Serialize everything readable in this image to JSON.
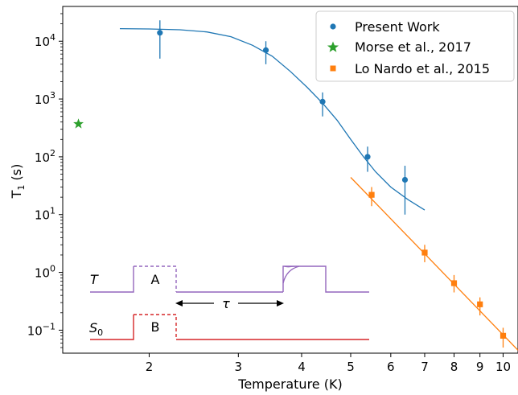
{
  "chart_data": {
    "type": "scatter",
    "xlabel": "Temperature (K)",
    "ylabel": "T",
    "ylabel_sub": "1",
    "ylabel_unit": " (s)",
    "x_scale": "log",
    "y_scale": "log",
    "xlim": [
      1.35,
      10.7
    ],
    "ylim": [
      0.04,
      40000
    ],
    "x_ticks": [
      {
        "value": 2,
        "label": "2"
      },
      {
        "value": 3,
        "label": "3"
      },
      {
        "value": 4,
        "label": "4"
      },
      {
        "value": 5,
        "label": "5"
      },
      {
        "value": 6,
        "label": "6"
      },
      {
        "value": 7,
        "label": "7"
      },
      {
        "value": 8,
        "label": "8"
      },
      {
        "value": 9,
        "label": "9"
      },
      {
        "value": 10,
        "label": "10"
      }
    ],
    "y_ticks": [
      {
        "value": 0.1,
        "base": "10",
        "exp": "−1"
      },
      {
        "value": 1,
        "base": "10",
        "exp": "0"
      },
      {
        "value": 10,
        "base": "10",
        "exp": "1"
      },
      {
        "value": 100,
        "base": "10",
        "exp": "2"
      },
      {
        "value": 1000,
        "base": "10",
        "exp": "3"
      },
      {
        "value": 10000,
        "base": "10",
        "exp": "4"
      }
    ],
    "legend_position": "top-right",
    "series": [
      {
        "name": "Present Work",
        "color": "#1f77b4",
        "marker": "circle",
        "points": [
          {
            "x": 2.1,
            "y": 14000,
            "ylo": 5000,
            "yhi": 23000
          },
          {
            "x": 3.4,
            "y": 7000,
            "ylo": 4000,
            "yhi": 10000
          },
          {
            "x": 4.4,
            "y": 900,
            "ylo": 500,
            "yhi": 1300
          },
          {
            "x": 5.4,
            "y": 100,
            "ylo": 55,
            "yhi": 150
          },
          {
            "x": 6.4,
            "y": 40,
            "ylo": 10,
            "yhi": 70
          }
        ],
        "fit": [
          [
            1.75,
            16500
          ],
          [
            2.0,
            16300
          ],
          [
            2.3,
            15800
          ],
          [
            2.6,
            14500
          ],
          [
            2.9,
            12000
          ],
          [
            3.2,
            8500
          ],
          [
            3.5,
            5500
          ],
          [
            3.8,
            3000
          ],
          [
            4.1,
            1600
          ],
          [
            4.4,
            850
          ],
          [
            4.7,
            430
          ],
          [
            5.0,
            200
          ],
          [
            5.3,
            100
          ],
          [
            5.6,
            55
          ],
          [
            6.0,
            30
          ],
          [
            6.5,
            18
          ],
          [
            7.0,
            12
          ]
        ]
      },
      {
        "name": "Morse et al., 2017",
        "color": "#2ca02c",
        "marker": "star",
        "points": [
          {
            "x": 1.45,
            "y": 370
          }
        ]
      },
      {
        "name": "Lo Nardo et al., 2015",
        "color": "#ff7f0e",
        "marker": "square",
        "points": [
          {
            "x": 5.5,
            "y": 22,
            "ylo": 14,
            "yhi": 30
          },
          {
            "x": 7.0,
            "y": 2.2,
            "ylo": 1.5,
            "yhi": 3.0
          },
          {
            "x": 8.0,
            "y": 0.65,
            "ylo": 0.45,
            "yhi": 0.9
          },
          {
            "x": 9.0,
            "y": 0.28,
            "ylo": 0.18,
            "yhi": 0.37
          },
          {
            "x": 10.0,
            "y": 0.08,
            "ylo": 0.05,
            "yhi": 0.11
          }
        ],
        "fit": [
          [
            5.0,
            44
          ],
          [
            10.7,
            0.045
          ]
        ]
      }
    ],
    "inset": {
      "T_label": "T",
      "S_label": "S",
      "S_sub": "0",
      "A_label": "A",
      "B_label": "B",
      "tau_label": "τ",
      "T_color": "#9467bd",
      "S_color": "#d62728"
    }
  }
}
